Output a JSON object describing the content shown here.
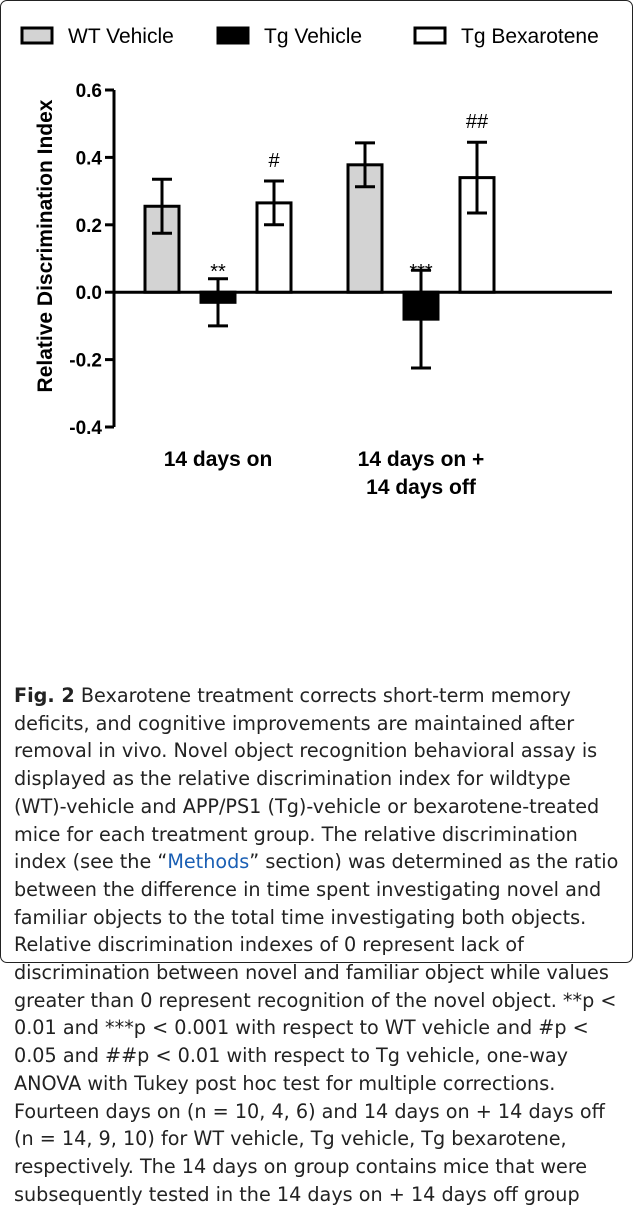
{
  "chart_data": {
    "type": "bar",
    "ylabel": "Relative Discrimination Index",
    "ylim": [
      -0.4,
      0.6
    ],
    "yticks": [
      "-0.4",
      "-0.2",
      "0.0",
      "0.2",
      "0.4",
      "0.6"
    ],
    "groups": [
      "14 days on",
      "14 days on + 14 days off"
    ],
    "group_label_lines": [
      [
        "14 days on"
      ],
      [
        "14 days on +",
        "14 days off"
      ]
    ],
    "legend_position": "top",
    "series": [
      {
        "name": "WT Vehicle",
        "fill": "#d3d3d3",
        "values": [
          0.255,
          0.378
        ],
        "errors": [
          0.08,
          0.065
        ],
        "annotations": [
          "",
          ""
        ]
      },
      {
        "name": "Tg Vehicle",
        "fill": "#000000",
        "values": [
          -0.03,
          -0.08
        ],
        "errors": [
          0.07,
          0.145
        ],
        "annotations": [
          "**",
          "***"
        ]
      },
      {
        "name": "Tg Bexarotene",
        "fill": "#ffffff",
        "values": [
          0.265,
          0.34
        ],
        "errors": [
          0.065,
          0.105
        ],
        "annotations": [
          "#",
          "##"
        ]
      }
    ]
  },
  "caption": {
    "fig_label": "Fig. 2",
    "text_before_link": " Bexarotene treatment corrects short-term memory deficits, and cognitive improvements are maintained after removal in vivo. Novel object recognition behavioral assay is displayed as the relative discrimination index for wildtype (WT)-vehicle and APP/PS1 (Tg)-vehicle or bexarotene-treated mice for each treatment group. The relative discrimination index (see the “",
    "link": "Methods",
    "text_after_link": "” section) was determined as the ratio between the difference in time spent investigating novel and familiar objects to the total time investigating both objects. Relative discrimination indexes of 0 represent lack of discrimination between novel and familiar object while values greater than 0 represent recognition of the novel object. **p < 0.01 and ***p < 0.001 with respect to WT vehicle and #p < 0.05 and ##p < 0.01 with respect to Tg vehicle, one-way ANOVA with Tukey post hoc test for multiple corrections. Fourteen days on (n = 10, 4, 6) and 14 days on + 14 days off (n = 14, 9, 10) for WT vehicle, Tg vehicle, Tg bexarotene, respectively. The 14 days on group contains mice that were subsequently tested in the 14 days on + 14 days off group"
  }
}
